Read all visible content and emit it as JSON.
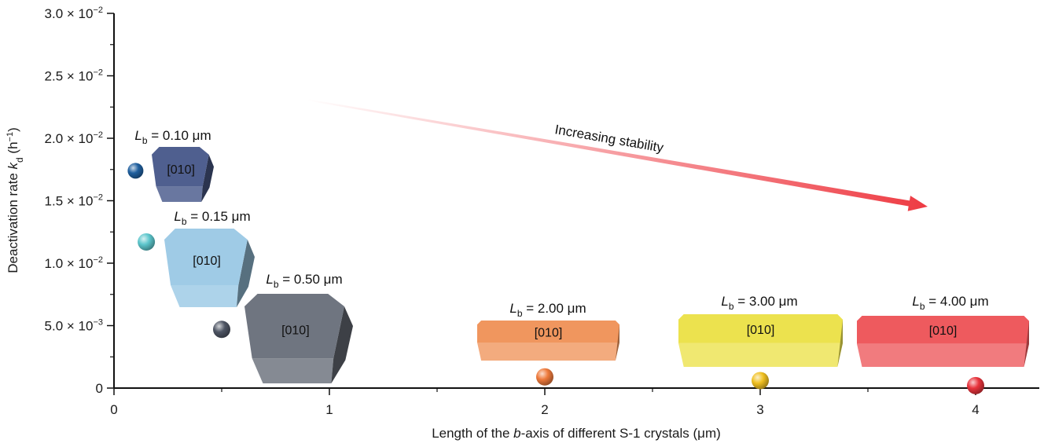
{
  "chart_data": {
    "type": "scatter",
    "xlabel": {
      "prefix": "Length of the ",
      "italic": "b",
      "suffix": "-axis of different S-1 crystals (μm)"
    },
    "ylabel": {
      "prefix": "Deactivation rate ",
      "italic": "k",
      "sub": "d",
      "unit_open": " (h",
      "unit_sup": "−1",
      "unit_close": ")"
    },
    "xlim": [
      0,
      4.3
    ],
    "ylim": [
      0,
      0.03
    ],
    "x_ticks": [
      {
        "value": 0,
        "label": "0"
      },
      {
        "value": 1,
        "label": "1"
      },
      {
        "value": 2,
        "label": "2"
      },
      {
        "value": 3,
        "label": "3"
      },
      {
        "value": 4,
        "label": "4"
      }
    ],
    "y_ticks": [
      {
        "value": 0,
        "label": "0",
        "exp": ""
      },
      {
        "value": 0.005,
        "label": "5.0 × 10",
        "exp": "−3"
      },
      {
        "value": 0.01,
        "label": "1.0 × 10",
        "exp": "−2"
      },
      {
        "value": 0.015,
        "label": "1.5 × 10",
        "exp": "−2"
      },
      {
        "value": 0.02,
        "label": "2.0 × 10",
        "exp": "−2"
      },
      {
        "value": 0.025,
        "label": "2.5 × 10",
        "exp": "−2"
      },
      {
        "value": 0.03,
        "label": "3.0 × 10",
        "exp": "−2"
      }
    ],
    "grid": false,
    "points": [
      {
        "x": 0.1,
        "y": 0.0174,
        "color": "#1f5f9e",
        "label_italic": "L",
        "label_sub": "b",
        "label_rest": " = 0.10 μm",
        "facet": "[010]",
        "crystal_color": "#4f5f8f"
      },
      {
        "x": 0.15,
        "y": 0.0117,
        "color": "#5cc6cc",
        "label_italic": "L",
        "label_sub": "b",
        "label_rest": " = 0.15 μm",
        "facet": "[010]",
        "crystal_color": "#9fcbe6"
      },
      {
        "x": 0.5,
        "y": 0.0047,
        "color": "#4e5564",
        "label_italic": "L",
        "label_sub": "b",
        "label_rest": " = 0.50 μm",
        "facet": "[010]",
        "crystal_color": "#6f7580"
      },
      {
        "x": 2.0,
        "y": 0.0009,
        "color": "#ee7a3c",
        "label_italic": "L",
        "label_sub": "b",
        "label_rest": " = 2.00 μm",
        "facet": "[010]",
        "crystal_color": "#f0965e"
      },
      {
        "x": 3.0,
        "y": 0.0006,
        "color": "#f0c021",
        "label_italic": "L",
        "label_sub": "b",
        "label_rest": " = 3.00 μm",
        "facet": "[010]",
        "crystal_color": "#ece24e"
      },
      {
        "x": 4.0,
        "y": 0.0002,
        "color": "#e8333c",
        "label_italic": "L",
        "label_sub": "b",
        "label_rest": " = 4.00 μm",
        "facet": "[010]",
        "crystal_color": "#ee5a5e"
      }
    ],
    "annotation": {
      "text": "Increasing stability",
      "arrow_color": "#ee3b43"
    }
  }
}
